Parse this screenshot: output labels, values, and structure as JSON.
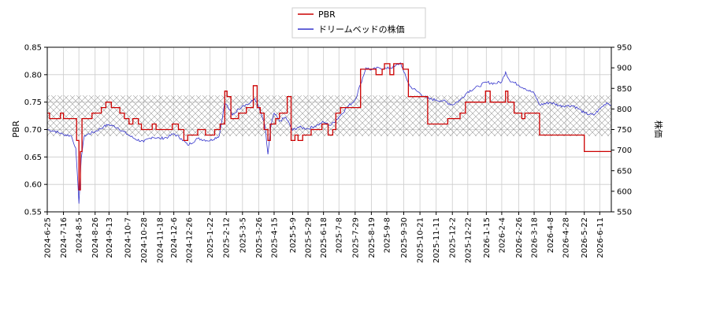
{
  "chart_data": {
    "type": "line",
    "grid": true,
    "legend_position": "top-center",
    "ylabel": "PBR",
    "y2label": "株価",
    "ylim": [
      0.55,
      0.85
    ],
    "y2lim": [
      550,
      950
    ],
    "yticks": [
      "0.55",
      "0.60",
      "0.65",
      "0.70",
      "0.75",
      "0.80",
      "0.85"
    ],
    "y2ticks": [
      "550",
      "600",
      "650",
      "700",
      "750",
      "800",
      "850",
      "900",
      "950"
    ],
    "xlim": [
      "2024-06-25",
      "2026-06-26"
    ],
    "xticks": [
      "2024-6-25",
      "2024-7-16",
      "2024-8-5",
      "2024-8-26",
      "2024-9-13",
      "2024-10-7",
      "2024-10-28",
      "2024-11-18",
      "2024-12-6",
      "2024-12-26",
      "2025-1-22",
      "2025-2-12",
      "2025-3-5",
      "2025-3-26",
      "2025-4-15",
      "2025-5-9",
      "2025-5-29",
      "2025-6-18",
      "2025-7-8",
      "2025-7-29",
      "2025-8-19",
      "2025-9-8",
      "2025-9-30",
      "2025-10-21",
      "2025-11-11",
      "2025-12-2",
      "2025-12-22",
      "2026-1-15",
      "2026-2-4",
      "2026-2-26",
      "2026-3-18",
      "2026-4-8",
      "2026-4-28",
      "2026-5-22",
      "2026-6-11"
    ],
    "band": {
      "y2_from": 734,
      "y2_to": 833
    },
    "colors": {
      "pbr": "#cc0000",
      "price": "#3333cc"
    },
    "series": [
      {
        "name": "PBR",
        "axis": "left",
        "points": [
          [
            "2024-06-25",
            0.73
          ],
          [
            "2024-06-28",
            0.72
          ],
          [
            "2024-07-12",
            0.73
          ],
          [
            "2024-07-16",
            0.72
          ],
          [
            "2024-07-30",
            0.72
          ],
          [
            "2024-08-02",
            0.68
          ],
          [
            "2024-08-05",
            0.59
          ],
          [
            "2024-08-07",
            0.66
          ],
          [
            "2024-08-09",
            0.72
          ],
          [
            "2024-08-20",
            0.72
          ],
          [
            "2024-08-22",
            0.73
          ],
          [
            "2024-09-03",
            0.74
          ],
          [
            "2024-09-09",
            0.75
          ],
          [
            "2024-09-16",
            0.74
          ],
          [
            "2024-09-27",
            0.73
          ],
          [
            "2024-10-03",
            0.72
          ],
          [
            "2024-10-09",
            0.71
          ],
          [
            "2024-10-14",
            0.72
          ],
          [
            "2024-10-21",
            0.71
          ],
          [
            "2024-10-25",
            0.7
          ],
          [
            "2024-11-08",
            0.71
          ],
          [
            "2024-11-13",
            0.7
          ],
          [
            "2024-11-29",
            0.7
          ],
          [
            "2024-12-04",
            0.71
          ],
          [
            "2024-12-12",
            0.7
          ],
          [
            "2024-12-19",
            0.68
          ],
          [
            "2024-12-24",
            0.69
          ],
          [
            "2025-01-06",
            0.7
          ],
          [
            "2025-01-16",
            0.69
          ],
          [
            "2025-01-28",
            0.7
          ],
          [
            "2025-02-04",
            0.71
          ],
          [
            "2025-02-10",
            0.77
          ],
          [
            "2025-02-13",
            0.76
          ],
          [
            "2025-02-18",
            0.72
          ],
          [
            "2025-02-28",
            0.73
          ],
          [
            "2025-03-10",
            0.74
          ],
          [
            "2025-03-19",
            0.78
          ],
          [
            "2025-03-24",
            0.74
          ],
          [
            "2025-03-28",
            0.73
          ],
          [
            "2025-04-02",
            0.7
          ],
          [
            "2025-04-07",
            0.68
          ],
          [
            "2025-04-10",
            0.71
          ],
          [
            "2025-04-17",
            0.72
          ],
          [
            "2025-04-22",
            0.73
          ],
          [
            "2025-04-30",
            0.73
          ],
          [
            "2025-05-02",
            0.76
          ],
          [
            "2025-05-07",
            0.68
          ],
          [
            "2025-05-12",
            0.69
          ],
          [
            "2025-05-16",
            0.68
          ],
          [
            "2025-05-22",
            0.69
          ],
          [
            "2025-06-02",
            0.7
          ],
          [
            "2025-06-16",
            0.71
          ],
          [
            "2025-06-24",
            0.69
          ],
          [
            "2025-06-30",
            0.7
          ],
          [
            "2025-07-04",
            0.73
          ],
          [
            "2025-07-10",
            0.74
          ],
          [
            "2025-07-29",
            0.74
          ],
          [
            "2025-08-05",
            0.81
          ],
          [
            "2025-08-20",
            0.81
          ],
          [
            "2025-08-25",
            0.8
          ],
          [
            "2025-09-02",
            0.81
          ],
          [
            "2025-09-05",
            0.82
          ],
          [
            "2025-09-12",
            0.8
          ],
          [
            "2025-09-17",
            0.82
          ],
          [
            "2025-09-29",
            0.81
          ],
          [
            "2025-10-06",
            0.76
          ],
          [
            "2025-10-24",
            0.76
          ],
          [
            "2025-10-31",
            0.71
          ],
          [
            "2025-11-20",
            0.71
          ],
          [
            "2025-11-26",
            0.72
          ],
          [
            "2025-12-05",
            0.72
          ],
          [
            "2025-12-12",
            0.73
          ],
          [
            "2025-12-19",
            0.75
          ],
          [
            "2026-01-09",
            0.75
          ],
          [
            "2026-01-14",
            0.77
          ],
          [
            "2026-01-20",
            0.75
          ],
          [
            "2026-02-02",
            0.75
          ],
          [
            "2026-02-09",
            0.77
          ],
          [
            "2026-02-12",
            0.75
          ],
          [
            "2026-02-20",
            0.73
          ],
          [
            "2026-03-02",
            0.72
          ],
          [
            "2026-03-06",
            0.73
          ],
          [
            "2026-03-23",
            0.73
          ],
          [
            "2026-03-25",
            0.69
          ],
          [
            "2026-05-15",
            0.69
          ],
          [
            "2026-05-22",
            0.66
          ],
          [
            "2026-06-26",
            0.66
          ]
        ]
      },
      {
        "name": "ドリームベッドの株価",
        "axis": "right",
        "points": [
          [
            "2024-06-25",
            750
          ],
          [
            "2024-07-05",
            746
          ],
          [
            "2024-07-16",
            738
          ],
          [
            "2024-07-26",
            735
          ],
          [
            "2024-08-01",
            705
          ],
          [
            "2024-08-05",
            570
          ],
          [
            "2024-08-08",
            680
          ],
          [
            "2024-08-12",
            735
          ],
          [
            "2024-08-26",
            745
          ],
          [
            "2024-09-06",
            757
          ],
          [
            "2024-09-13",
            762
          ],
          [
            "2024-09-24",
            755
          ],
          [
            "2024-10-07",
            738
          ],
          [
            "2024-10-17",
            727
          ],
          [
            "2024-10-28",
            720
          ],
          [
            "2024-11-08",
            732
          ],
          [
            "2024-11-18",
            728
          ],
          [
            "2024-11-29",
            732
          ],
          [
            "2024-12-06",
            740
          ],
          [
            "2024-12-16",
            728
          ],
          [
            "2024-12-24",
            712
          ],
          [
            "2025-01-06",
            728
          ],
          [
            "2025-01-22",
            723
          ],
          [
            "2025-02-03",
            735
          ],
          [
            "2025-02-10",
            815
          ],
          [
            "2025-02-14",
            805
          ],
          [
            "2025-02-20",
            785
          ],
          [
            "2025-02-28",
            800
          ],
          [
            "2025-03-05",
            808
          ],
          [
            "2025-03-14",
            813
          ],
          [
            "2025-03-21",
            825
          ],
          [
            "2025-03-26",
            805
          ],
          [
            "2025-04-03",
            760
          ],
          [
            "2025-04-07",
            690
          ],
          [
            "2025-04-11",
            760
          ],
          [
            "2025-04-15",
            790
          ],
          [
            "2025-04-22",
            770
          ],
          [
            "2025-04-30",
            780
          ],
          [
            "2025-05-09",
            748
          ],
          [
            "2025-05-16",
            756
          ],
          [
            "2025-05-29",
            752
          ],
          [
            "2025-06-09",
            760
          ],
          [
            "2025-06-18",
            768
          ],
          [
            "2025-06-27",
            760
          ],
          [
            "2025-07-08",
            780
          ],
          [
            "2025-07-18",
            803
          ],
          [
            "2025-07-29",
            822
          ],
          [
            "2025-08-05",
            860
          ],
          [
            "2025-08-12",
            900
          ],
          [
            "2025-08-19",
            895
          ],
          [
            "2025-08-29",
            900
          ],
          [
            "2025-09-08",
            898
          ],
          [
            "2025-09-18",
            903
          ],
          [
            "2025-09-26",
            912
          ],
          [
            "2025-09-30",
            890
          ],
          [
            "2025-10-08",
            855
          ],
          [
            "2025-10-21",
            838
          ],
          [
            "2025-10-31",
            825
          ],
          [
            "2025-11-11",
            822
          ],
          [
            "2025-11-20",
            820
          ],
          [
            "2025-12-02",
            810
          ],
          [
            "2025-12-12",
            822
          ],
          [
            "2025-12-22",
            842
          ],
          [
            "2026-01-05",
            855
          ],
          [
            "2026-01-15",
            865
          ],
          [
            "2026-01-26",
            862
          ],
          [
            "2026-02-04",
            866
          ],
          [
            "2026-02-09",
            890
          ],
          [
            "2026-02-14",
            870
          ],
          [
            "2026-02-26",
            858
          ],
          [
            "2026-03-06",
            850
          ],
          [
            "2026-03-18",
            838
          ],
          [
            "2026-03-25",
            810
          ],
          [
            "2026-04-08",
            816
          ],
          [
            "2026-04-20",
            808
          ],
          [
            "2026-04-28",
            808
          ],
          [
            "2026-05-08",
            808
          ],
          [
            "2026-05-15",
            800
          ],
          [
            "2026-05-22",
            790
          ],
          [
            "2026-06-03",
            785
          ],
          [
            "2026-06-11",
            800
          ],
          [
            "2026-06-20",
            815
          ],
          [
            "2026-06-26",
            810
          ]
        ]
      }
    ]
  }
}
